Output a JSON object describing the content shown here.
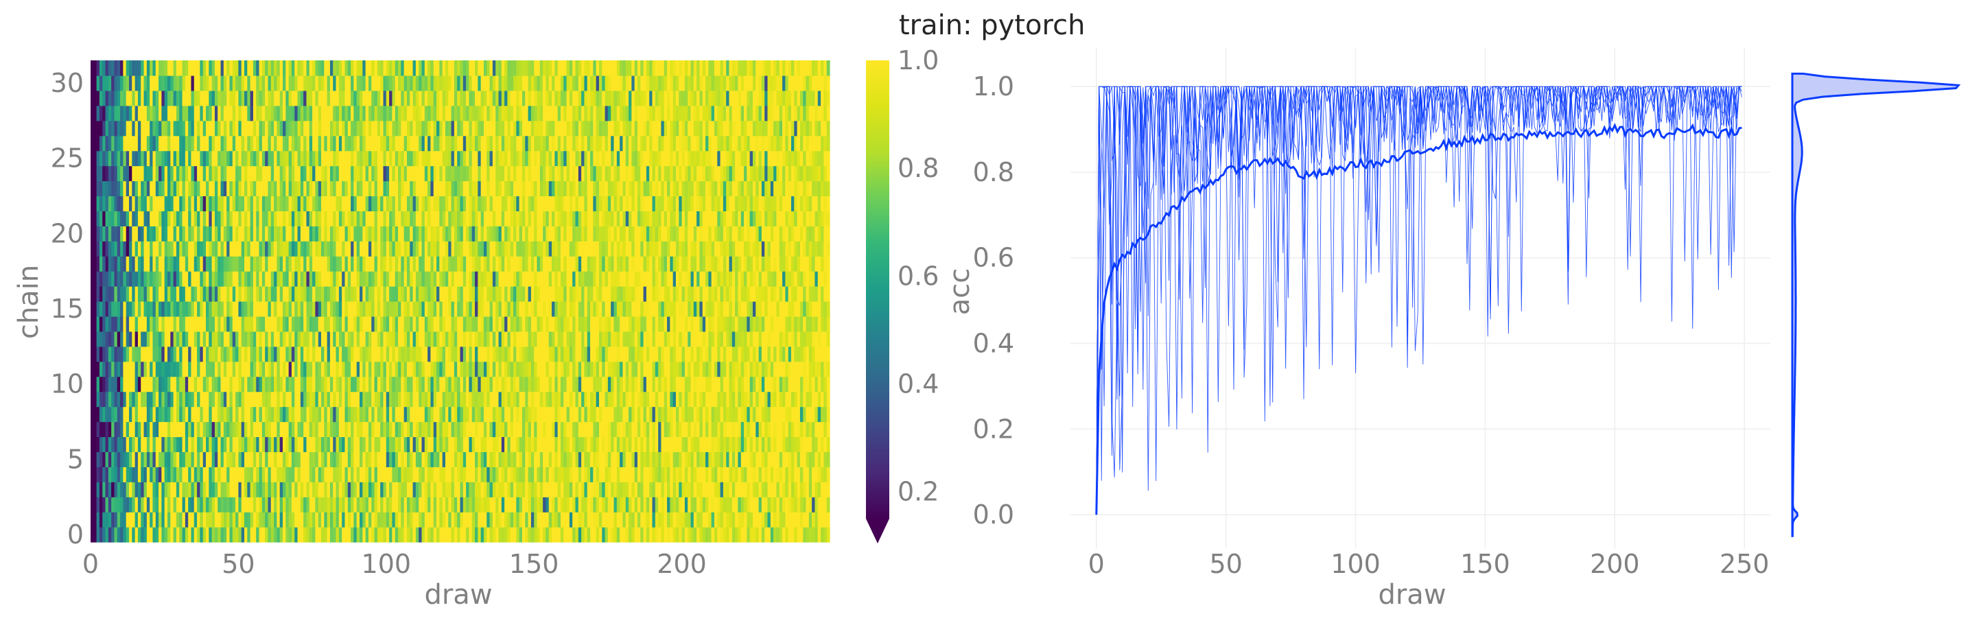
{
  "title": "train: pytorch",
  "chart_data": [
    {
      "type": "heatmap",
      "xlabel": "draw",
      "ylabel": "chain",
      "n_draws": 250,
      "n_chains": 32,
      "xticks": [
        0,
        50,
        100,
        150,
        200
      ],
      "yticks": [
        0,
        5,
        10,
        15,
        20,
        25,
        30
      ],
      "colorbar": {
        "label": "acc",
        "colormap": "viridis",
        "range": [
          0.15,
          1.0
        ],
        "ticks": [
          0.2,
          0.4,
          0.6,
          0.8,
          1.0
        ],
        "extend": "min"
      },
      "trend": {
        "description_draws": [
          0,
          5,
          10,
          25,
          50,
          100,
          150,
          200,
          249
        ],
        "mean_acc": [
          0.3,
          0.45,
          0.55,
          0.68,
          0.8,
          0.82,
          0.87,
          0.89,
          0.9
        ]
      }
    },
    {
      "type": "line",
      "xlabel": "draw",
      "ylabel": "",
      "xlim": [
        -10,
        260
      ],
      "ylim": [
        -0.08,
        1.09
      ],
      "xticks": [
        0,
        50,
        100,
        150,
        200,
        250
      ],
      "yticks": [
        0.0,
        0.2,
        0.4,
        0.6,
        0.8,
        1.0
      ],
      "grid": true,
      "color": "#0a3cff",
      "series": [
        {
          "role": "mean",
          "x": [
            0,
            1,
            3,
            5,
            10,
            15,
            20,
            25,
            30,
            40,
            50,
            60,
            70,
            80,
            90,
            100,
            110,
            120,
            130,
            140,
            150,
            160,
            170,
            180,
            190,
            200,
            210,
            220,
            230,
            240,
            249
          ],
          "values": [
            0.0,
            0.33,
            0.5,
            0.56,
            0.6,
            0.63,
            0.66,
            0.69,
            0.72,
            0.76,
            0.8,
            0.82,
            0.83,
            0.79,
            0.8,
            0.82,
            0.82,
            0.84,
            0.86,
            0.87,
            0.88,
            0.88,
            0.89,
            0.89,
            0.89,
            0.9,
            0.89,
            0.89,
            0.9,
            0.89,
            0.9
          ]
        },
        {
          "role": "min_envelope",
          "x": [
            0,
            2,
            5,
            10,
            20,
            30,
            40,
            50,
            60,
            75,
            90,
            100,
            120,
            140,
            160,
            180,
            200,
            220,
            240,
            249
          ],
          "values": [
            0.0,
            0.02,
            0.03,
            0.02,
            0.05,
            0.07,
            0.05,
            0.15,
            0.2,
            0.25,
            0.25,
            0.3,
            0.32,
            0.35,
            0.4,
            0.42,
            0.45,
            0.4,
            0.38,
            0.55
          ]
        }
      ],
      "marginal_density": {
        "type": "kde",
        "mode": 1.0,
        "range": [
          -0.05,
          1.0
        ]
      }
    }
  ]
}
